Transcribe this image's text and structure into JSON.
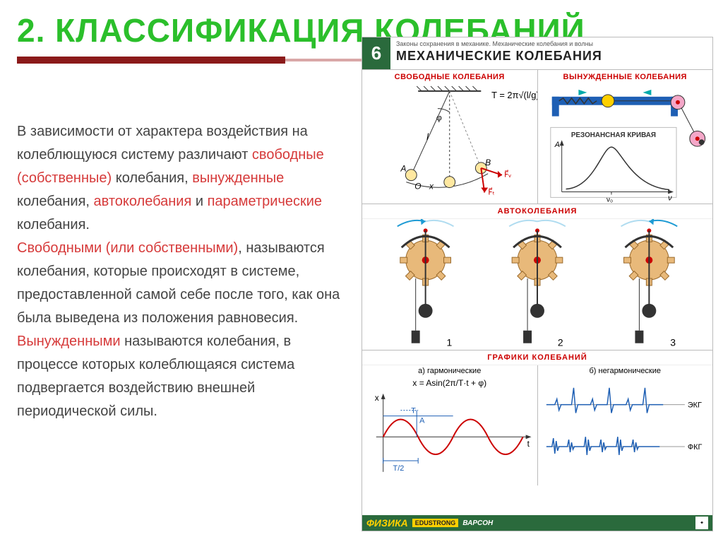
{
  "colors": {
    "title": "#2bbf2b",
    "underline_dark": "#8b1a1a",
    "underline_light": "#d9a7a7",
    "text": "#444444",
    "hl_red": "#d63a3a",
    "poster_green": "#2a6a3c",
    "poster_red": "#c00000",
    "poster_blue": "#1e5fb4",
    "poster_pink": "#f4a7c8",
    "poster_orange": "#e8b97a",
    "axis": "#333333"
  },
  "title": "2. КЛАССИФИКАЦИЯ КОЛЕБАНИЙ",
  "paragraphs": [
    [
      {
        "t": "В зависимости от характера воздей­ствия на колеблющуюся систему различают ",
        "c": "text"
      },
      {
        "t": "свободные (собственные)",
        "c": "hl_red"
      },
      {
        "t": " колебания, ",
        "c": "text"
      },
      {
        "t": "вынужденные",
        "c": "hl_red"
      },
      {
        "t": " колебания, ",
        "c": "text"
      },
      {
        "t": "автоколебания",
        "c": "hl_red"
      },
      {
        "t": " и ",
        "c": "text"
      },
      {
        "t": "параметрические",
        "c": "hl_red"
      },
      {
        "t": " колебания.",
        "c": "text"
      }
    ],
    [
      {
        "t": "Свободными (или собственными)",
        "c": "hl_red"
      },
      {
        "t": ", на­зываются колебания, которые проис­ходят в системе, предоставленной самой себе после того, как она была выведена из положения равновесия.",
        "c": "text"
      }
    ],
    [
      {
        "t": "Вынужденными",
        "c": "hl_red"
      },
      {
        "t": " называются колебания, в процессе которых колеблющаяся система подвергается воздействию внешней периодической силы.",
        "c": "text"
      }
    ]
  ],
  "poster": {
    "badge": "6",
    "supertitle": "Законы сохранения в механике. Механические колебания и волны",
    "main_title": "МЕХАНИЧЕСКИЕ КОЛЕБАНИЯ",
    "panel1": {
      "title": "СВОБОДНЫЕ КОЛЕБАНИЯ",
      "formula": "T = 2π√(l/g)",
      "labels": {
        "A": "A",
        "O": "O",
        "B": "B",
        "phi": "φ",
        "l": "l",
        "x": "x",
        "Fv": "F⃗ᵥ",
        "Ft": "F⃗ₜ"
      }
    },
    "panel2": {
      "title": "ВЫНУЖДЕННЫЕ КОЛЕБАНИЯ",
      "curve_title": "РЕЗОНАНСНАЯ КРИВАЯ",
      "axes": {
        "y": "A",
        "x": "ν",
        "mark": "ν₀"
      }
    },
    "panel3": {
      "title": "АВТОКОЛЕБАНИЯ",
      "labels": [
        "1",
        "2",
        "3"
      ]
    },
    "panel4": {
      "title": "ГРАФИКИ КОЛЕБАНИЙ",
      "left_label": "а) гармонические",
      "right_label": "б) негармонические",
      "formula": "x = Asin(2π/T·t + φ)",
      "sine": {
        "x_axis": "t",
        "y_axis": "x",
        "amp_label": "A",
        "period_label": "T",
        "half_label": "T/2"
      },
      "traces": [
        "ЭКГ",
        "ФКГ"
      ],
      "sine_color": "#c00000",
      "trace_color": "#1e5fb4"
    },
    "footer": {
      "brand": "ФИЗИКА",
      "tag": "EDUSTRONG",
      "tag2": "ВАРСОН"
    }
  }
}
